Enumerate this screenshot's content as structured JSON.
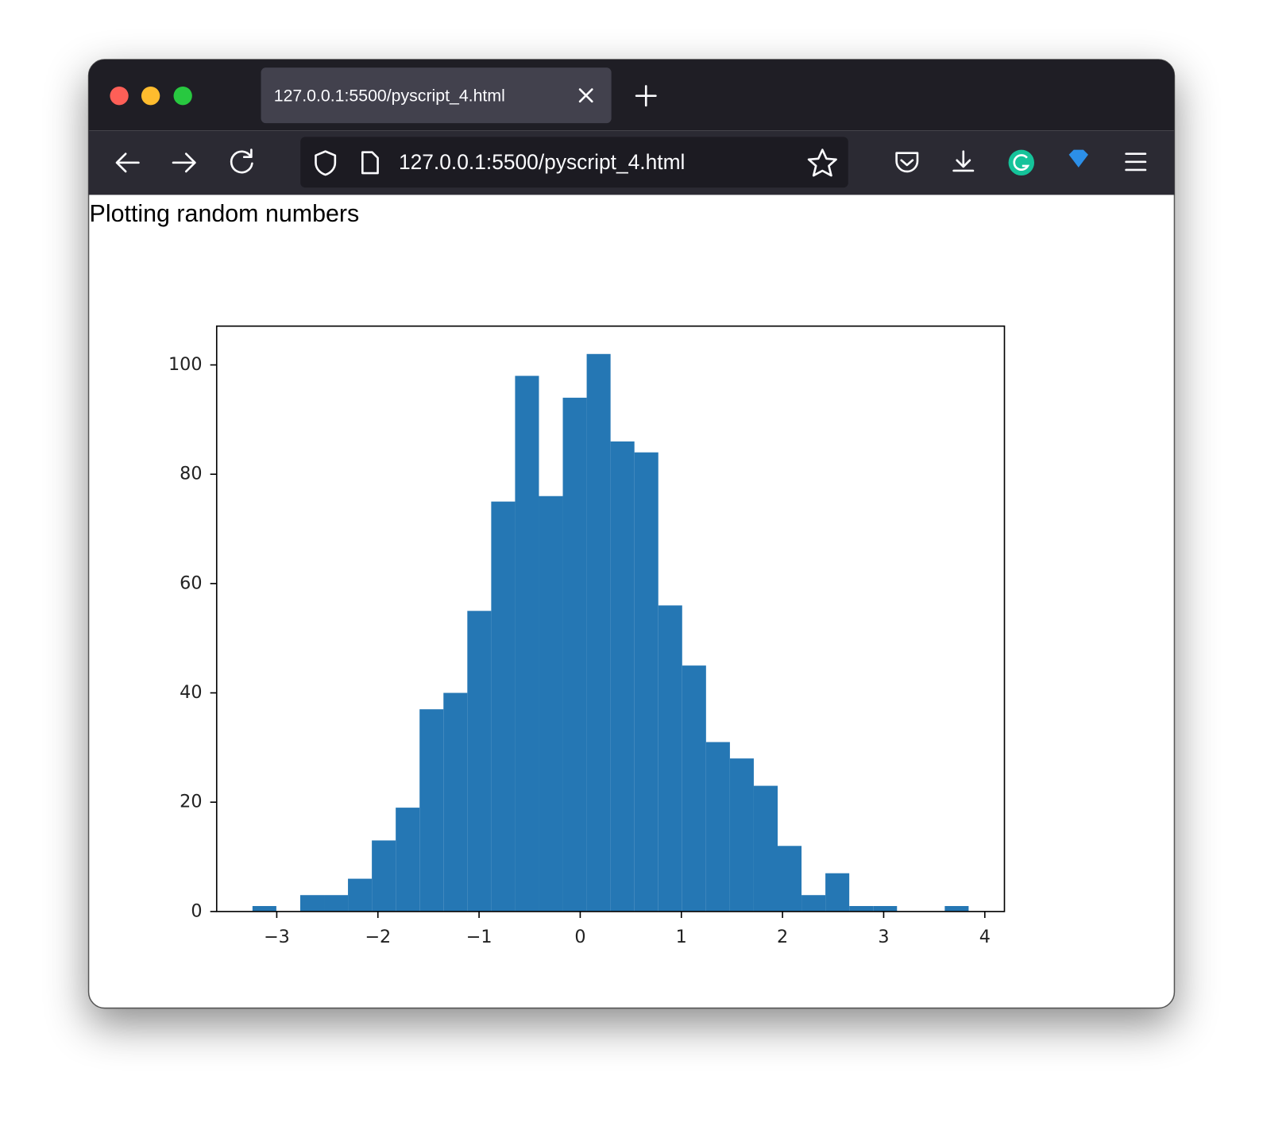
{
  "browser": {
    "tab_title": "127.0.0.1:5500/pyscript_4.html",
    "url": "127.0.0.1:5500/pyscript_4.html"
  },
  "page": {
    "heading": "Plotting random numbers"
  },
  "chart_data": {
    "type": "histogram",
    "color": "#2577b4",
    "bins": [
      -3.24,
      -3.004,
      -2.768,
      -2.532,
      -2.296,
      -2.06,
      -1.824,
      -1.588,
      -1.352,
      -1.116,
      -0.88,
      -0.644,
      -0.408,
      -0.172,
      0.064,
      0.3,
      0.536,
      0.772,
      1.008,
      1.244,
      1.48,
      1.716,
      1.952,
      2.188,
      2.424,
      2.66,
      2.896,
      3.132,
      3.368,
      3.604,
      3.84
    ],
    "values": [
      1,
      0,
      3,
      3,
      6,
      13,
      19,
      37,
      40,
      55,
      75,
      98,
      76,
      94,
      102,
      86,
      84,
      56,
      45,
      31,
      28,
      23,
      12,
      3,
      7,
      1,
      1,
      0,
      0,
      1
    ],
    "xlim": [
      -3.594,
      4.194
    ],
    "xticks": [
      {
        "value": -3,
        "label": "−3"
      },
      {
        "value": -2,
        "label": "−2"
      },
      {
        "value": -1,
        "label": "−1"
      },
      0,
      1,
      2,
      3,
      4
    ],
    "ylim": [
      0,
      107.1
    ],
    "yticks": [
      0,
      20,
      40,
      60,
      80,
      100
    ]
  }
}
